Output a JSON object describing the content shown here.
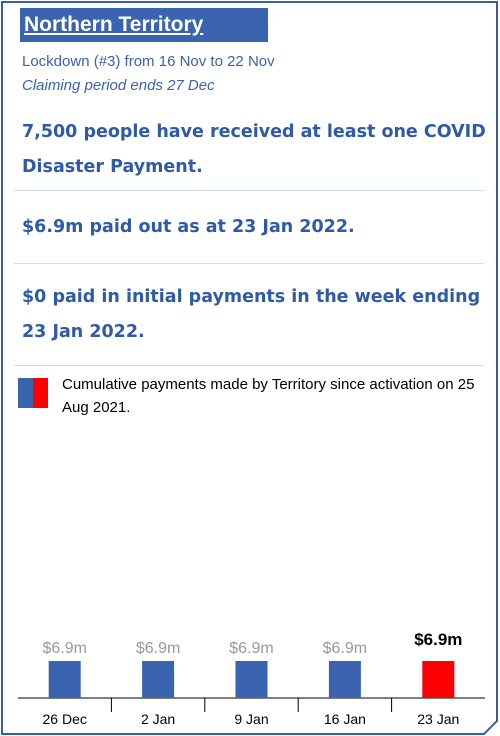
{
  "card": {
    "title": "Northern Territory",
    "lockdown": "Lockdown (#3) from 16 Nov to 22 Nov",
    "claiming": "Claiming period ends 27 Dec",
    "stats": [
      "7,500 people have received at least one COVID Disaster Payment.",
      "$6.9m paid out as at 23 Jan 2022.",
      "$0 paid in initial payments in the week ending 23 Jan 2022."
    ],
    "legend": "Cumulative payments made by Territory since activation on 25 Aug 2021."
  },
  "chart_data": {
    "type": "bar",
    "categories": [
      "26 Dec",
      "2 Jan",
      "9 Jan",
      "16 Jan",
      "23 Jan"
    ],
    "values": [
      6.9,
      6.9,
      6.9,
      6.9,
      6.9
    ],
    "value_labels": [
      "$6.9m",
      "$6.9m",
      "$6.9m",
      "$6.9m",
      "$6.9m"
    ],
    "colors": [
      "#3a63b0",
      "#3a63b0",
      "#3a63b0",
      "#3a63b0",
      "#ff0000"
    ]
  }
}
